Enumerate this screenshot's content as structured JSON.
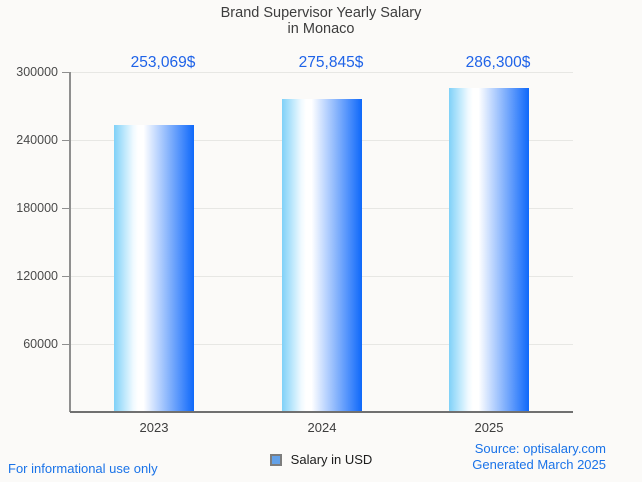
{
  "title": {
    "line1": "Brand Supervisor Yearly Salary",
    "line2": "in Monaco"
  },
  "chart_data": {
    "type": "bar",
    "title": "Brand Supervisor Yearly Salary in Monaco",
    "title_lines": [
      "Brand Supervisor Yearly Salary",
      "in Monaco"
    ],
    "categories": [
      "2023",
      "2024",
      "2025"
    ],
    "series": [
      {
        "name": "Salary in USD",
        "values": [
          253069,
          275845,
          286300
        ],
        "value_labels": [
          "253,069$",
          "275,845$",
          "286,300$"
        ]
      }
    ],
    "xlabel": "",
    "ylabel": "",
    "ylim": [
      0,
      300000
    ],
    "yticks": [
      60000,
      120000,
      180000,
      240000,
      300000
    ],
    "ytick_labels": [
      "60000",
      "120000",
      "180000",
      "240000",
      "300000"
    ],
    "grid": true,
    "legend_position": "bottom",
    "bar_gradient": [
      "#7fd1f8",
      "#ffffff",
      "#0e68fa"
    ]
  },
  "legend": {
    "label": "Salary in USD",
    "swatch_fill": "#63a1e8",
    "swatch_border": "#7d7d7d"
  },
  "footer": {
    "disclaimer": "For informational use only",
    "source": "Source: optisalary.com",
    "generated": "Generated March 2025"
  },
  "colors": {
    "background": "#fbfaf8",
    "value_label_blue": "#1f63e8",
    "link_blue": "#1a73e8",
    "title_text": "#3d3d3d",
    "axis_text": "#4a4a4a",
    "gridline": "#e7e7e4",
    "yaxis_line": "#8f8f8f",
    "xaxis_line": "#707070"
  }
}
